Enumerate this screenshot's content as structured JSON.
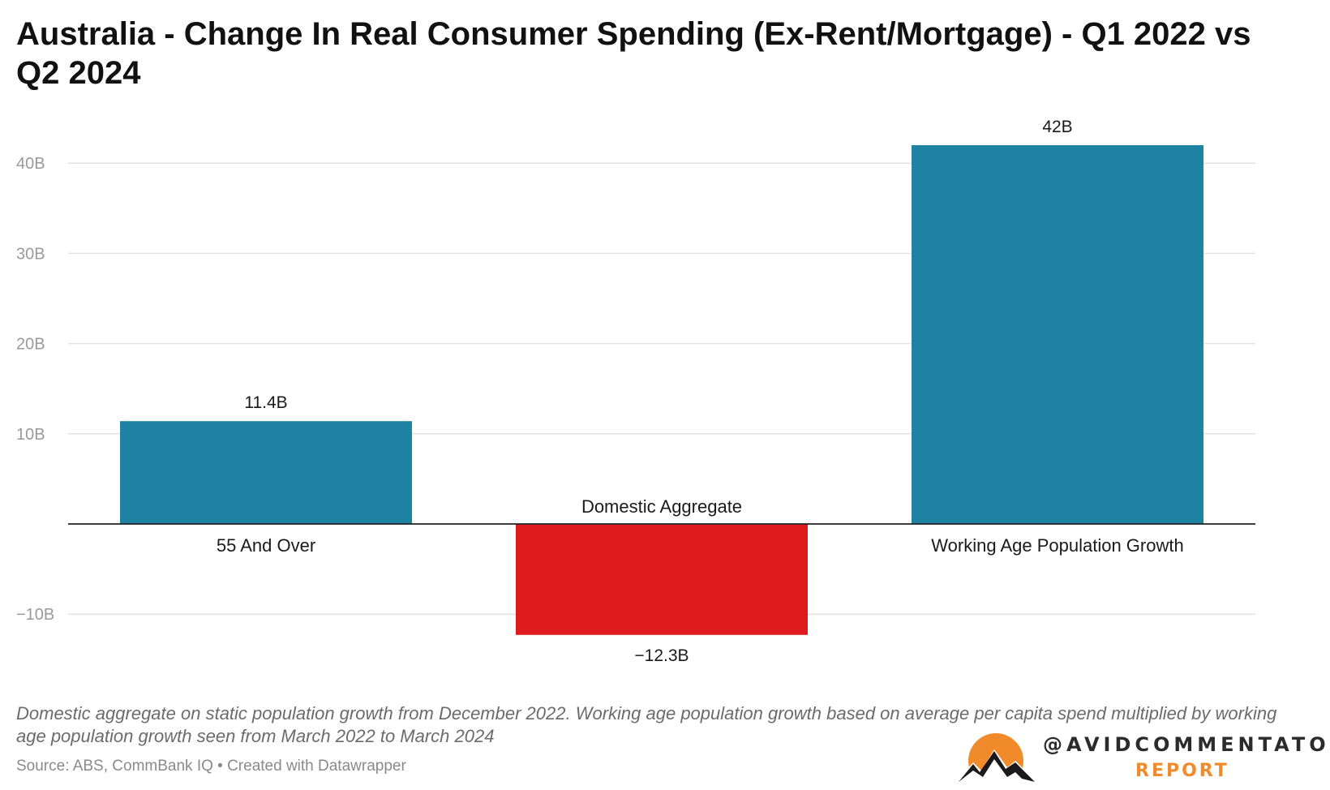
{
  "chart_data": {
    "type": "bar",
    "title": "Australia - Change In Real Consumer Spending (Ex-Rent/Mortgage)  - Q1 2022 vs Q2 2024",
    "categories": [
      "55 And Over",
      "Domestic Aggregate",
      "Working Age Population Growth"
    ],
    "values": [
      11.4,
      -12.3,
      42
    ],
    "value_labels": [
      "11.4B",
      "−12.3B",
      "42B"
    ],
    "bar_colors": [
      "#1e82a2",
      "#e01b1f",
      "#1e82a2"
    ],
    "ylim": [
      -12.3,
      42
    ],
    "yticks": [
      -10,
      10,
      20,
      30,
      40
    ],
    "ytick_labels": [
      "−10B",
      "10B",
      "20B",
      "30B",
      "40B"
    ],
    "grid": true,
    "xlabel": "",
    "ylabel": ""
  },
  "note": "Domestic aggregate on static population growth from December 2022. Working age population growth based on average per capita spend multiplied by working age population growth seen from March 2022 to March 2024",
  "source": "Source: ABS, CommBank IQ • Created with Datawrapper",
  "brand": {
    "name": "@AVIDCOMMENTATOR",
    "sub": "REPORT",
    "icon": "mountain-sun-logo-icon",
    "colors": {
      "sun": "#f08a2a",
      "mountain": "#1a1a1a"
    }
  }
}
